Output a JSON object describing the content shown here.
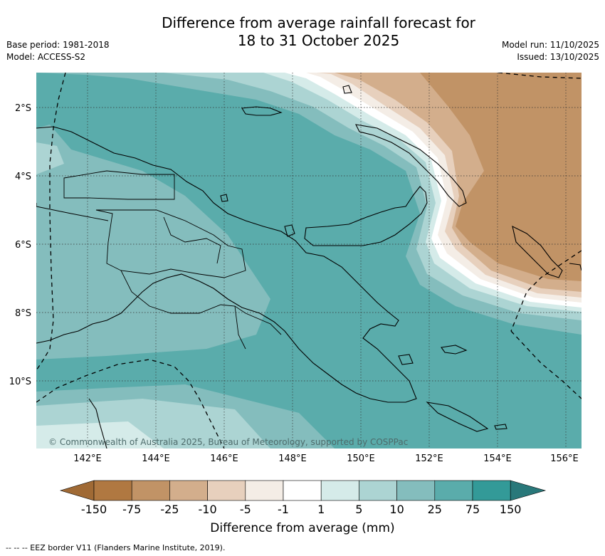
{
  "title_line1": "Difference from average rainfall forecast for",
  "title_line2": "18 to 31 October 2025",
  "base_period": "Base period: 1981-2018",
  "model": "Model: ACCESS-S2",
  "model_run": "Model run: 11/10/2025",
  "issued": "Issued: 13/10/2025",
  "copyright": "© Commonwealth of Australia 2025, Bureau of Meteorology, supported by COSPPac",
  "lon_labels": [
    "142°E",
    "144°E",
    "146°E",
    "148°E",
    "150°E",
    "152°E",
    "154°E",
    "156°E"
  ],
  "lat_labels": [
    "2°S",
    "4°S",
    "6°S",
    "8°S",
    "10°S"
  ],
  "colorbar": {
    "title": "Difference from average (mm)",
    "labels": [
      "-150",
      "-75",
      "-25",
      "-10",
      "-5",
      "-1",
      "1",
      "5",
      "10",
      "25",
      "75",
      "150"
    ],
    "colors": [
      "#a06a35",
      "#b07841",
      "#c19366",
      "#d3ae8c",
      "#e7d0bd",
      "#f4ede6",
      "#ffffff",
      "#d5ebe9",
      "#acd4d3",
      "#84bdbd",
      "#5aacab",
      "#339a98",
      "#29787a"
    ]
  },
  "footnote": "--  --  -- EEZ border V11 (Flanders Marine Institute, 2019)."
}
